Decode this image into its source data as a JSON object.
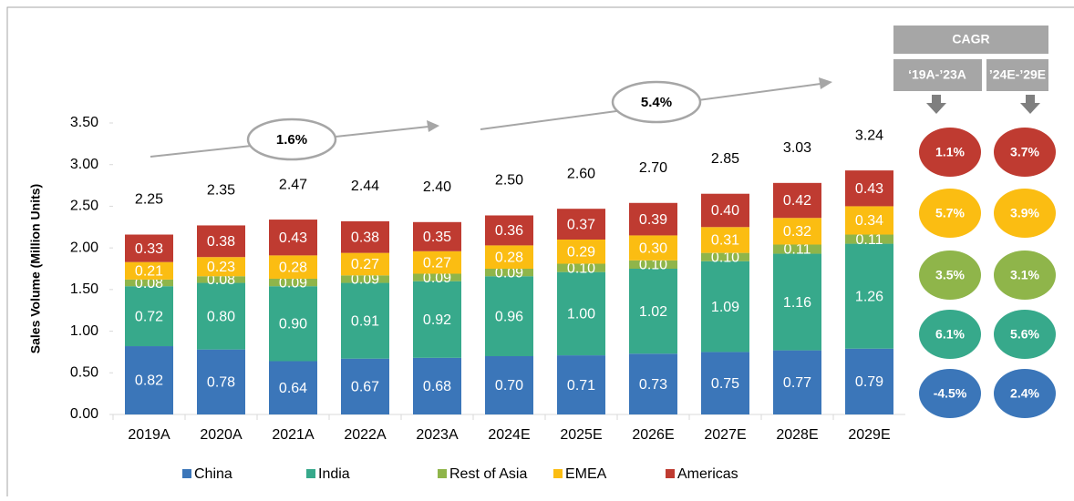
{
  "chart_data": {
    "type": "stacked_bar",
    "y_label": "Sales Volume (Million Units)",
    "categories": [
      "2019A",
      "2020A",
      "2021A",
      "2022A",
      "2023A",
      "2024E",
      "2025E",
      "2026E",
      "2027E",
      "2028E",
      "2029E"
    ],
    "ylim": [
      0,
      3.5
    ],
    "yticks": [
      {
        "value": 0,
        "label": "0.00"
      },
      {
        "value": 0.5,
        "label": "0.50"
      },
      {
        "value": 1,
        "label": "1.00"
      },
      {
        "value": 1.5,
        "label": "1.50"
      },
      {
        "value": 2,
        "label": "2.00"
      },
      {
        "value": 2.5,
        "label": "2.50"
      },
      {
        "value": 3,
        "label": "3.00"
      },
      {
        "value": 3.5,
        "label": "3.50"
      }
    ],
    "series": [
      {
        "name": "China",
        "color": "#3b76b9",
        "values": [
          0.82,
          0.78,
          0.64,
          0.67,
          0.68,
          0.7,
          0.71,
          0.73,
          0.75,
          0.77,
          0.79
        ],
        "value_labels": [
          "0.82",
          "0.78",
          "0.64",
          "0.67",
          "0.68",
          "0.70",
          "0.71",
          "0.73",
          "0.75",
          "0.77",
          "0.79"
        ],
        "cagr": [
          -4.5,
          2.4
        ],
        "cagr_labels": [
          "-4.5%",
          "2.4%"
        ]
      },
      {
        "name": "India",
        "color": "#37a98b",
        "values": [
          0.72,
          0.8,
          0.9,
          0.91,
          0.92,
          0.96,
          1.0,
          1.02,
          1.09,
          1.16,
          1.26
        ],
        "value_labels": [
          "0.72",
          "0.80",
          "0.90",
          "0.91",
          "0.92",
          "0.96",
          "1.00",
          "1.02",
          "1.09",
          "1.16",
          "1.26"
        ],
        "cagr": [
          6.1,
          5.6
        ],
        "cagr_labels": [
          "6.1%",
          "5.6%"
        ]
      },
      {
        "name": "Rest of Asia",
        "color": "#8fb54a",
        "values": [
          0.08,
          0.08,
          0.09,
          0.09,
          0.09,
          0.09,
          0.1,
          0.1,
          0.1,
          0.11,
          0.11
        ],
        "value_labels": [
          "0.08",
          "0.08",
          "0.09",
          "0.09",
          "0.09",
          "0.09",
          "0.10",
          "0.10",
          "0.10",
          "0.11",
          "0.11"
        ],
        "cagr": [
          3.5,
          3.1
        ],
        "cagr_labels": [
          "3.5%",
          "3.1%"
        ]
      },
      {
        "name": "EMEA",
        "color": "#fbbd12",
        "values": [
          0.21,
          0.23,
          0.28,
          0.27,
          0.27,
          0.28,
          0.29,
          0.3,
          0.31,
          0.32,
          0.34
        ],
        "value_labels": [
          "0.21",
          "0.23",
          "0.28",
          "0.27",
          "0.27",
          "0.28",
          "0.29",
          "0.30",
          "0.31",
          "0.32",
          "0.34"
        ],
        "cagr": [
          5.7,
          3.9
        ],
        "cagr_labels": [
          "5.7%",
          "3.9%"
        ]
      },
      {
        "name": "Americas",
        "color": "#bf3b31",
        "values": [
          0.33,
          0.38,
          0.43,
          0.38,
          0.35,
          0.36,
          0.37,
          0.39,
          0.4,
          0.42,
          0.43
        ],
        "value_labels": [
          "0.33",
          "0.38",
          "0.43",
          "0.38",
          "0.35",
          "0.36",
          "0.37",
          "0.39",
          "0.40",
          "0.42",
          "0.43"
        ],
        "cagr": [
          1.1,
          3.7
        ],
        "cagr_labels": [
          "1.1%",
          "3.7%"
        ]
      }
    ],
    "totals": {
      "values": [
        2.25,
        2.35,
        2.47,
        2.44,
        2.4,
        2.5,
        2.6,
        2.7,
        2.85,
        3.03,
        3.24
      ],
      "value_labels": [
        "2.25",
        "2.35",
        "2.47",
        "2.44",
        "2.40",
        "2.50",
        "2.60",
        "2.70",
        "2.85",
        "3.03",
        "3.24"
      ]
    },
    "annotations": [
      {
        "value": 1.6,
        "label": "1.6%"
      },
      {
        "value": 5.4,
        "label": "5.4%"
      }
    ],
    "cagr_header": "CAGR",
    "cagr_periods": [
      "‘19A-’23A",
      "’24E-’29E"
    ]
  }
}
